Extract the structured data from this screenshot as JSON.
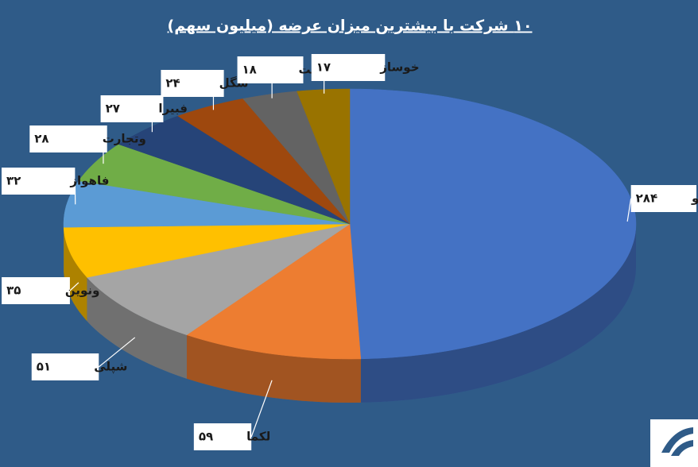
{
  "chart_data": {
    "type": "pie",
    "title": "۱۰ شرکت با بیشترین میزان عرضه (میلیون سهم)",
    "categories": [
      "تپکو",
      "لکما",
      "شپلی",
      "ونوین",
      "فاهواز",
      "وتجارت",
      "فبیرا",
      "شگل",
      "وملت",
      "خوساز"
    ],
    "values": [
      284,
      59,
      51,
      35,
      32,
      28,
      27,
      24,
      18,
      17
    ],
    "value_labels": [
      "۲۸۴",
      "۵۹",
      "۵۱",
      "۳۵",
      "۳۲",
      "۲۸",
      "۲۷",
      "۲۴",
      "۱۸",
      "۱۷"
    ],
    "colors": [
      "#4472c4",
      "#ed7d31",
      "#a5a5a5",
      "#ffc000",
      "#5b9bd5",
      "#70ad47",
      "#264478",
      "#9e480e",
      "#636363",
      "#997300"
    ]
  }
}
